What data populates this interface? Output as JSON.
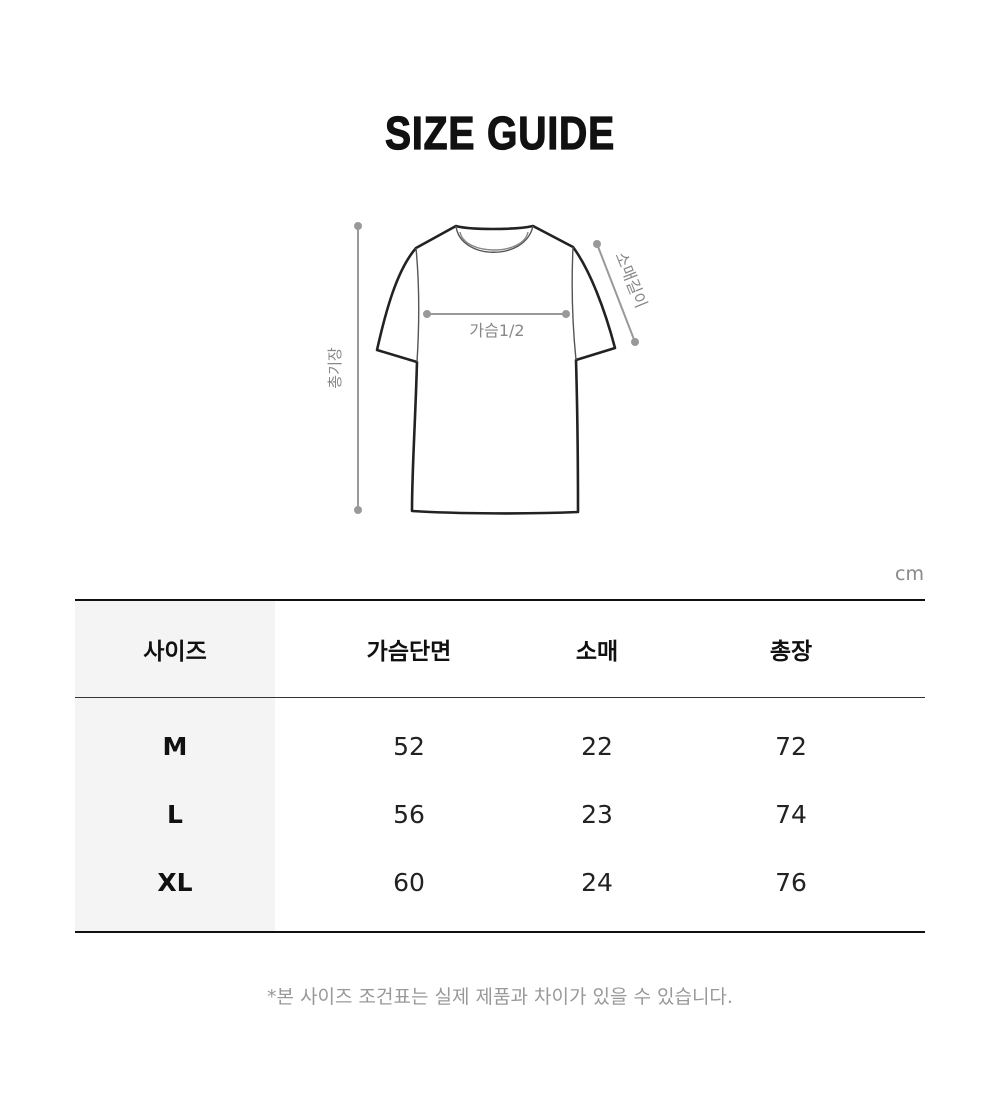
{
  "title": "SIZE GUIDE",
  "diagram": {
    "total_length_label": "총기장",
    "chest_label": "가슴1/2",
    "sleeve_label": "소매길이"
  },
  "unit": "cm",
  "table": {
    "headers": [
      "사이즈",
      "가슴단면",
      "소매",
      "총장"
    ],
    "rows": [
      [
        "M",
        "52",
        "22",
        "72"
      ],
      [
        "L",
        "56",
        "23",
        "74"
      ],
      [
        "XL",
        "60",
        "24",
        "76"
      ]
    ]
  },
  "note": "*본 사이즈 조건표는 실제 제품과 차이가 있을 수 있습니다."
}
